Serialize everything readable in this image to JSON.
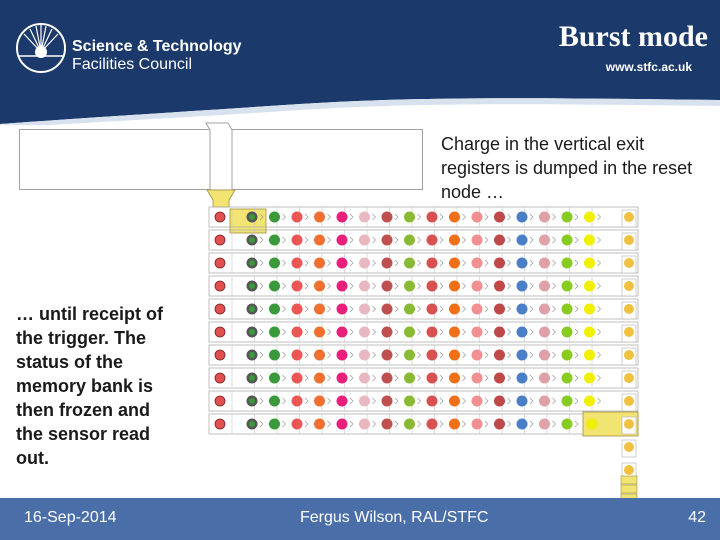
{
  "header": {
    "org_name_line1": "Science & Technology",
    "org_name_line2": "Facilities Council",
    "title": "Burst mode",
    "url": "www.stfc.ac.uk"
  },
  "body": {
    "text_right": "Charge in the vertical exit registers is dumped in the reset node …",
    "text_left": "… until receipt of the trigger. The status of the memory bank is then frozen and the sensor read out."
  },
  "diagram": {
    "rows": 10,
    "column_colors": [
      "#555555",
      "#3a9a3a",
      "#ee5555",
      "#f07030",
      "#e8207a",
      "#e8b8c0",
      "#c05050",
      "#88bb33",
      "#d85050",
      "#f07018",
      "#f09090",
      "#c04848",
      "#4a7fc8",
      "#e0a0a8",
      "#88cc22",
      "#f0f000"
    ],
    "reset_node_dot": "#e05050",
    "register_color": "#f2e472"
  },
  "footer": {
    "date": "16-Sep-2014",
    "author": "Fergus Wilson, RAL/STFC",
    "page": "42"
  }
}
